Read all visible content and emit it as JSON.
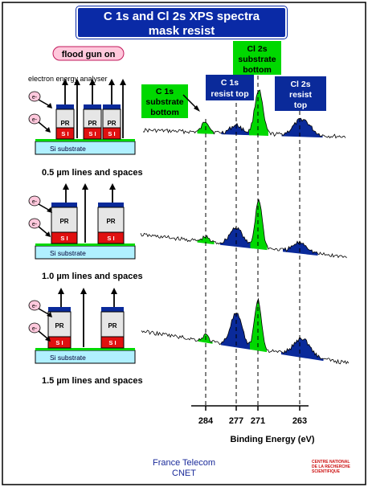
{
  "title": {
    "line1": "C 1s and Cl 2s XPS spectra",
    "line2": "mask resist"
  },
  "flood_gun_label": "flood gun on",
  "analyser_label": "electron energy analyser",
  "electron_symbol": "e-",
  "block_labels": {
    "pr": "PR",
    "si": "S I",
    "substrate": "Si substrate"
  },
  "panels": [
    {
      "caption": "0.5 µm lines and spaces"
    },
    {
      "caption": "1.0 µm lines and spaces"
    },
    {
      "caption": "1.5 µm lines and spaces"
    }
  ],
  "peak_labels": {
    "c1s_bottom": [
      "C 1s",
      "substrate",
      "bottom"
    ],
    "c1s_top": [
      "C 1s",
      "resist top"
    ],
    "cl2s_bottom": [
      "Cl 2s",
      "substrate",
      "bottom"
    ],
    "cl2s_top": [
      "Cl 2s",
      "resist",
      "top"
    ]
  },
  "axis": {
    "ticks": [
      "284",
      "277",
      "271",
      "263"
    ],
    "label": "Binding Energy (eV)"
  },
  "footer": {
    "line1": "France Telecom",
    "line2": "CNET"
  },
  "logo_text": [
    "CENTRE NATIONAL",
    "DE LA RECHERCHE",
    "SCIENTIFIQUE"
  ],
  "colors": {
    "title_bg": "#0a2aa6",
    "substrate_peak": "#00d800",
    "resist_peak": "#0a2a9a",
    "flood_gun_bg": "#ffc8dc",
    "substrate_fill": "#b0f0ff",
    "si_block": "#e01010"
  }
}
